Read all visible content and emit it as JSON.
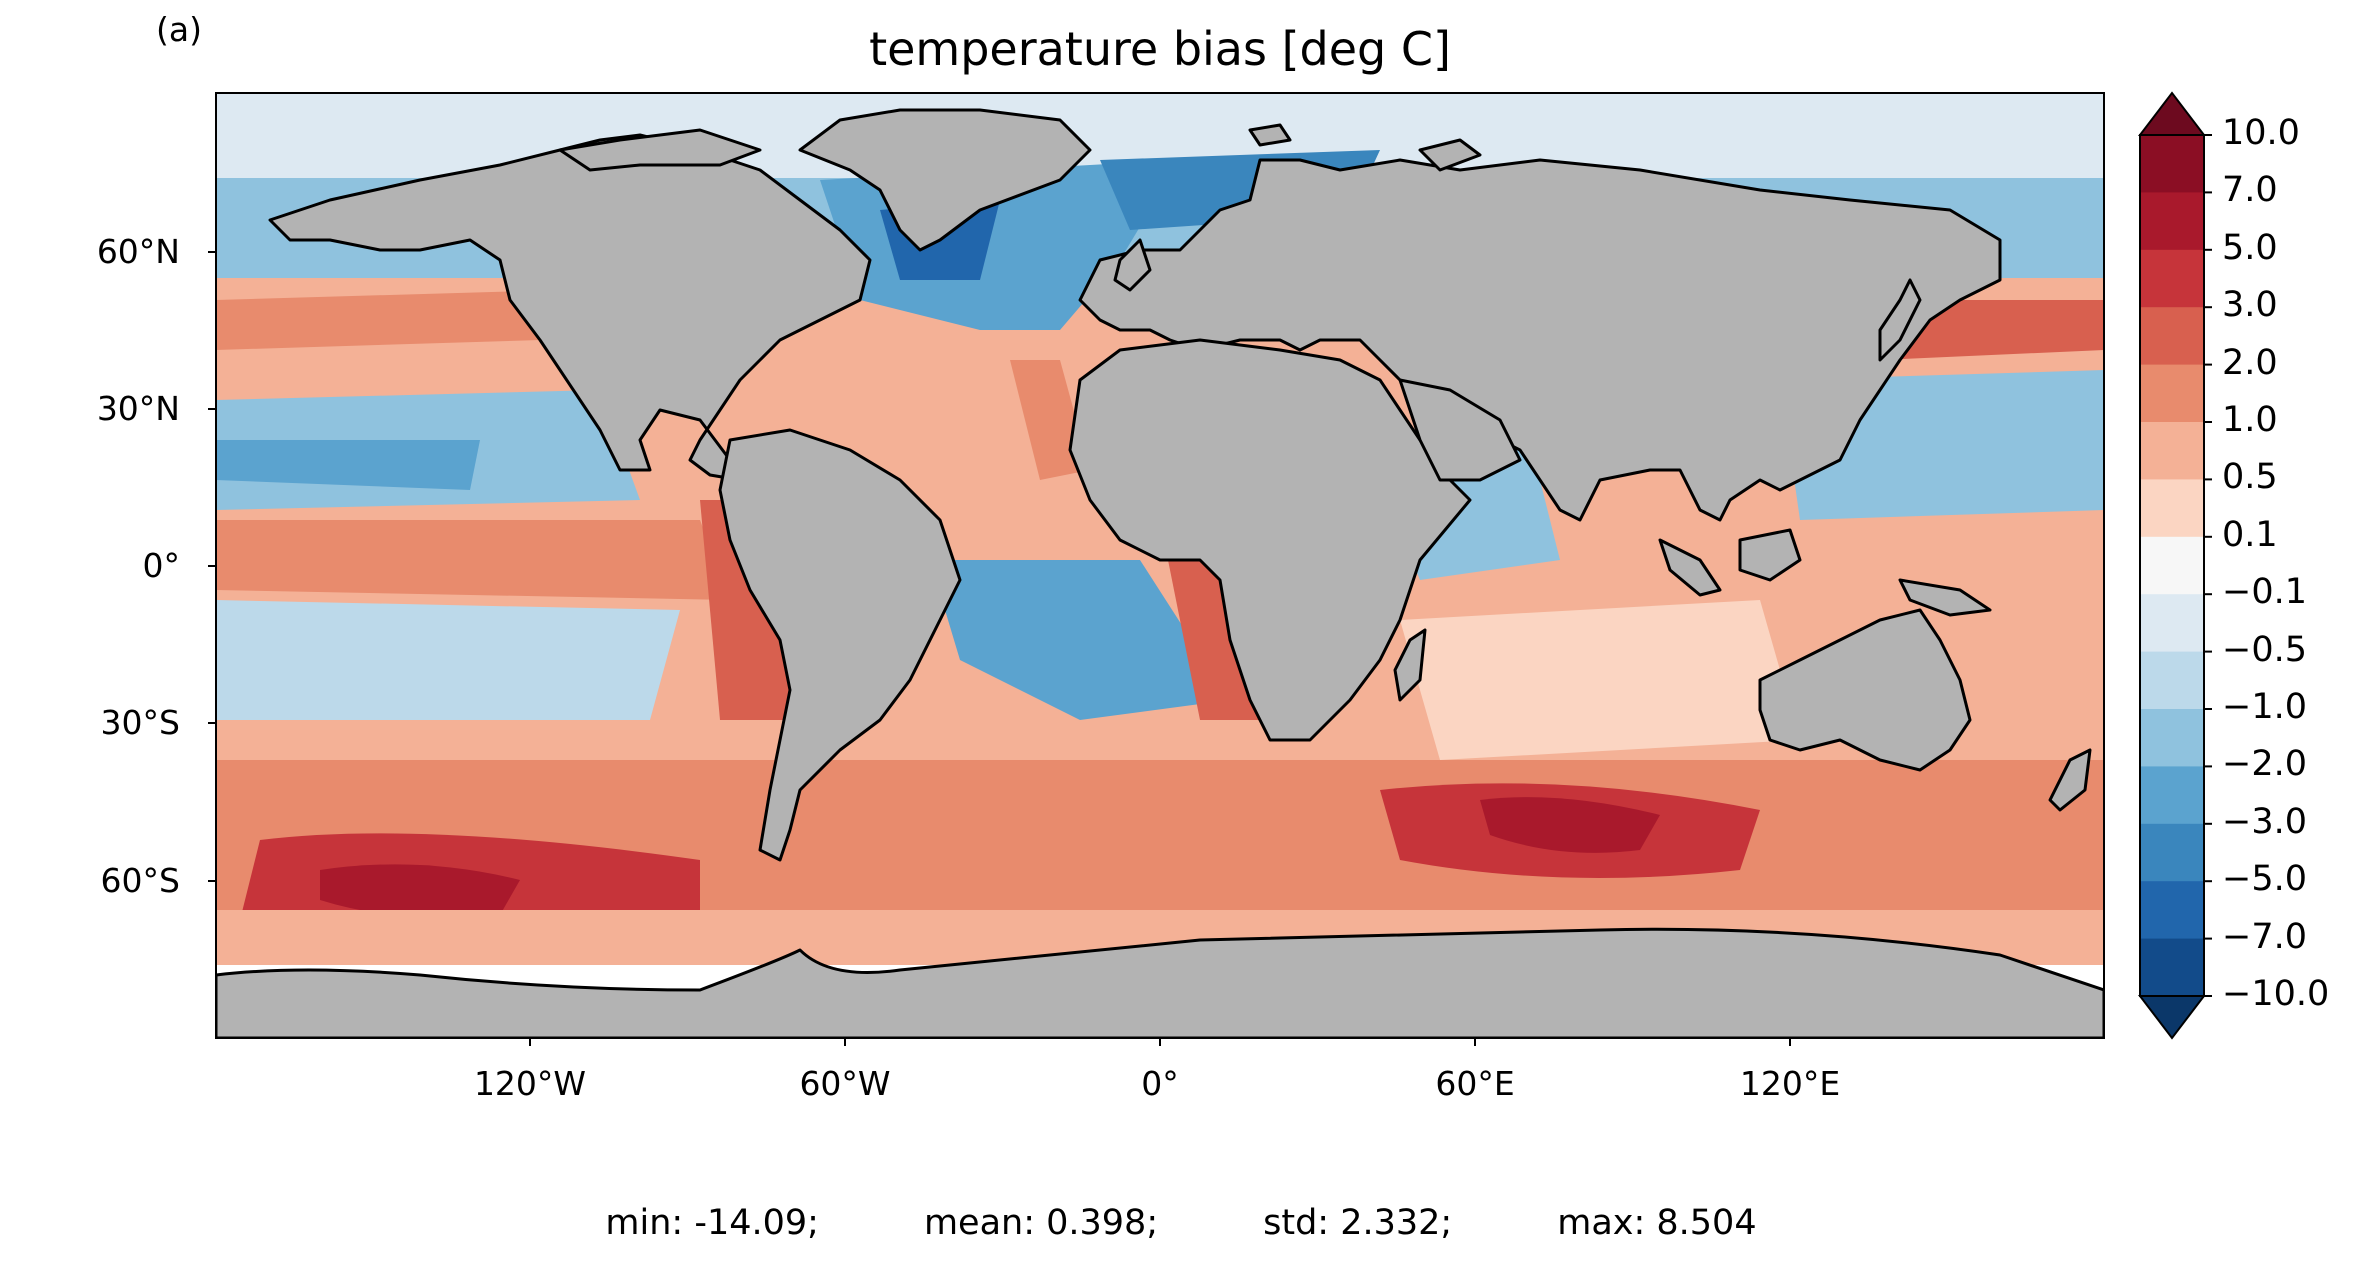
{
  "panel_label": "(a)",
  "title": "temperature bias [deg C]",
  "axes": {
    "lat_ticks": [
      "60°N",
      "30°N",
      "0°",
      "30°S",
      "60°S"
    ],
    "lon_ticks": [
      "120°W",
      "60°W",
      "0°",
      "60°E",
      "120°E"
    ]
  },
  "colorbar": {
    "extend": "both",
    "labels": [
      "10.0",
      "7.0",
      "5.0",
      "3.0",
      "2.0",
      "1.0",
      "0.5",
      "0.1",
      "−0.1",
      "−0.5",
      "−1.0",
      "−2.0",
      "−3.0",
      "−5.0",
      "−7.0",
      "−10.0"
    ],
    "colors": [
      "#8b0e24",
      "#a9192c",
      "#c6343a",
      "#d8604f",
      "#e88b6d",
      "#f4b196",
      "#fbd5c2",
      "#f7f7f7",
      "#dde9f2",
      "#bcd9ea",
      "#8fc2de",
      "#5ba3cf",
      "#3a86bd",
      "#2166ac",
      "#124b8a"
    ],
    "over_color": "#6d0a1f",
    "under_color": "#0b3769"
  },
  "colors": {
    "land": "#b3b3b3",
    "coast": "#000000",
    "ice": "#ffffff"
  },
  "stats": {
    "min": "min: -14.09;",
    "mean": "mean: 0.398;",
    "std": "std: 2.332;",
    "max": "max: 8.504"
  }
}
